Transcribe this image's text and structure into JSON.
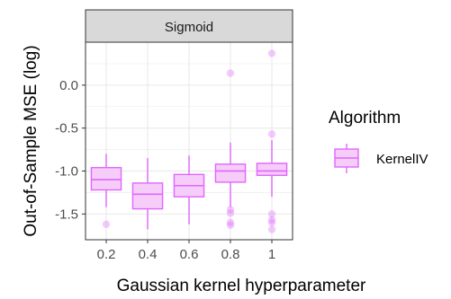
{
  "chart_data": {
    "type": "boxplot",
    "strip_label": "Sigmoid",
    "xlabel": "Gaussian kernel hyperparameter",
    "ylabel": "Out-of-Sample MSE (log)",
    "categories": [
      "0.2",
      "0.4",
      "0.6",
      "0.8",
      "1"
    ],
    "y_ticks": [
      0.0,
      -0.5,
      -1.0,
      -1.5
    ],
    "y_tick_labels": [
      "0.0",
      "-0.5",
      "-1.0",
      "-1.5"
    ],
    "ylim": [
      -1.8,
      0.5
    ],
    "grid": true,
    "legend": {
      "title": "Algorithm",
      "position": "right",
      "entries": [
        {
          "name": "KernelIV",
          "color": "#e066ff"
        }
      ]
    },
    "colors": {
      "box_stroke": "#e066ff",
      "box_fill": "#f6cdf9",
      "outlier": "#e066ff",
      "panel_bg": "#ffffff",
      "grid": "#ebebeb",
      "strip_bg": "#d9d9d9",
      "strip_border": "#333333"
    },
    "series": [
      {
        "name": "KernelIV",
        "boxes": [
          {
            "x": "0.2",
            "whisker_low": -1.42,
            "q1": -1.22,
            "median": -1.1,
            "q3": -0.96,
            "whisker_high": -0.8,
            "outliers": [
              -1.62
            ]
          },
          {
            "x": "0.4",
            "whisker_low": -1.68,
            "q1": -1.44,
            "median": -1.27,
            "q3": -1.14,
            "whisker_high": -0.85,
            "outliers": []
          },
          {
            "x": "0.6",
            "whisker_low": -1.62,
            "q1": -1.3,
            "median": -1.17,
            "q3": -1.04,
            "whisker_high": -0.82,
            "outliers": []
          },
          {
            "x": "0.8",
            "whisker_low": -1.42,
            "q1": -1.13,
            "median": -1.0,
            "q3": -0.92,
            "whisker_high": -0.67,
            "outliers": [
              0.14,
              -1.45,
              -1.49,
              -1.6,
              -1.63
            ]
          },
          {
            "x": "1",
            "whisker_low": -1.3,
            "q1": -1.05,
            "median": -1.0,
            "q3": -0.91,
            "whisker_high": -0.64,
            "outliers": [
              0.37,
              -0.57,
              -1.5,
              -1.57,
              -1.6,
              -1.68
            ]
          }
        ]
      }
    ]
  }
}
